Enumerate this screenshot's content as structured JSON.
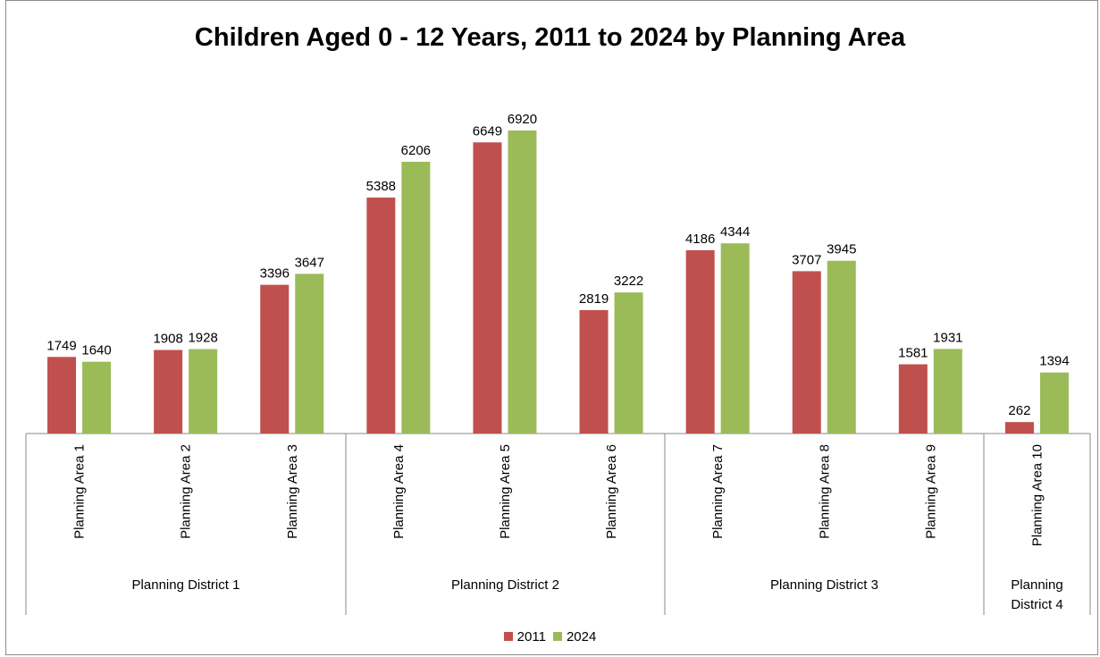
{
  "chart_data": {
    "type": "bar",
    "title": "Children Aged 0 - 12 Years, 2011 to 2024 by Planning Area",
    "categories": [
      "Planning Area 1",
      "Planning Area 2",
      "Planning Area 3",
      "Planning Area 4",
      "Planning Area 5",
      "Planning Area 6",
      "Planning Area 7",
      "Planning Area 8",
      "Planning Area 9",
      "Planning Area 10"
    ],
    "groups": [
      {
        "label": "Planning District 1",
        "categories": [
          "Planning Area 1",
          "Planning Area 2",
          "Planning Area 3"
        ]
      },
      {
        "label": "Planning District 2",
        "categories": [
          "Planning Area 4",
          "Planning Area 5",
          "Planning Area 6"
        ]
      },
      {
        "label": "Planning District 3",
        "categories": [
          "Planning Area 7",
          "Planning Area 8",
          "Planning Area 9"
        ]
      },
      {
        "label": "Planning District 4",
        "categories": [
          "Planning Area 10"
        ]
      }
    ],
    "series": [
      {
        "name": "2011",
        "color": "#c0504d",
        "values": [
          1749,
          1908,
          3396,
          5388,
          6649,
          2819,
          4186,
          3707,
          1581,
          262
        ]
      },
      {
        "name": "2024",
        "color": "#9bbb59",
        "values": [
          1640,
          1928,
          3647,
          6206,
          6920,
          3222,
          4344,
          3945,
          1931,
          1394
        ]
      }
    ],
    "ylim": [
      0,
      7000
    ],
    "grid": false,
    "legend_position": "bottom"
  }
}
